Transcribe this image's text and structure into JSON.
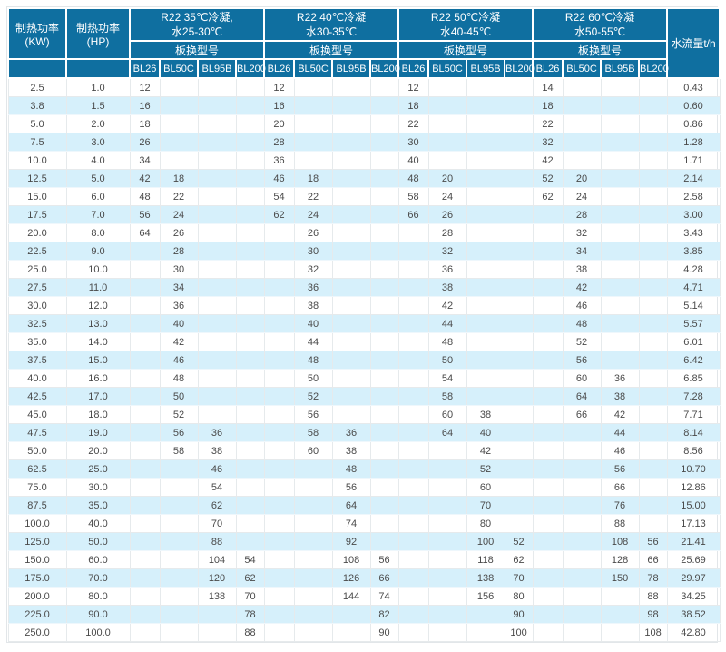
{
  "colors": {
    "header_bg": "#0f6fa0",
    "header_text": "#ffffff",
    "stripe_bg": "#d6f0fb",
    "body_text": "#4a4a4a",
    "border": "#e6eaec"
  },
  "chart_data": {
    "type": "table",
    "title": "",
    "header": {
      "power_kw": "制热功率(KW)",
      "power_hp": "制热功率(HP)",
      "flow": "水流量t/h",
      "model_row_label": "板换型号",
      "models": [
        "BL26",
        "BL50C",
        "BL95B",
        "BL200"
      ],
      "groups": [
        {
          "line1": "R22 35℃冷凝,",
          "line2": "水25-30℃"
        },
        {
          "line1": "R22 40℃冷凝",
          "line2": "水30-35℃"
        },
        {
          "line1": "R22 50℃冷凝",
          "line2": "水40-45℃"
        },
        {
          "line1": "R22 60℃冷凝",
          "line2": "水50-55℃"
        }
      ]
    },
    "rows": [
      [
        "2.5",
        "1.0",
        "12",
        "",
        "",
        "",
        "12",
        "",
        "",
        "",
        "12",
        "",
        "",
        "",
        "14",
        "",
        "",
        "",
        "0.43"
      ],
      [
        "3.8",
        "1.5",
        "16",
        "",
        "",
        "",
        "16",
        "",
        "",
        "",
        "18",
        "",
        "",
        "",
        "18",
        "",
        "",
        "",
        "0.60"
      ],
      [
        "5.0",
        "2.0",
        "18",
        "",
        "",
        "",
        "20",
        "",
        "",
        "",
        "22",
        "",
        "",
        "",
        "22",
        "",
        "",
        "",
        "0.86"
      ],
      [
        "7.5",
        "3.0",
        "26",
        "",
        "",
        "",
        "28",
        "",
        "",
        "",
        "30",
        "",
        "",
        "",
        "32",
        "",
        "",
        "",
        "1.28"
      ],
      [
        "10.0",
        "4.0",
        "34",
        "",
        "",
        "",
        "36",
        "",
        "",
        "",
        "40",
        "",
        "",
        "",
        "42",
        "",
        "",
        "",
        "1.71"
      ],
      [
        "12.5",
        "5.0",
        "42",
        "18",
        "",
        "",
        "46",
        "18",
        "",
        "",
        "48",
        "20",
        "",
        "",
        "52",
        "20",
        "",
        "",
        "2.14"
      ],
      [
        "15.0",
        "6.0",
        "48",
        "22",
        "",
        "",
        "54",
        "22",
        "",
        "",
        "58",
        "24",
        "",
        "",
        "62",
        "24",
        "",
        "",
        "2.58"
      ],
      [
        "17.5",
        "7.0",
        "56",
        "24",
        "",
        "",
        "62",
        "24",
        "",
        "",
        "66",
        "26",
        "",
        "",
        "",
        "28",
        "",
        "",
        "3.00"
      ],
      [
        "20.0",
        "8.0",
        "64",
        "26",
        "",
        "",
        "",
        "26",
        "",
        "",
        "",
        "28",
        "",
        "",
        "",
        "32",
        "",
        "",
        "3.43"
      ],
      [
        "22.5",
        "9.0",
        "",
        "28",
        "",
        "",
        "",
        "30",
        "",
        "",
        "",
        "32",
        "",
        "",
        "",
        "34",
        "",
        "",
        "3.85"
      ],
      [
        "25.0",
        "10.0",
        "",
        "30",
        "",
        "",
        "",
        "32",
        "",
        "",
        "",
        "36",
        "",
        "",
        "",
        "38",
        "",
        "",
        "4.28"
      ],
      [
        "27.5",
        "11.0",
        "",
        "34",
        "",
        "",
        "",
        "36",
        "",
        "",
        "",
        "38",
        "",
        "",
        "",
        "42",
        "",
        "",
        "4.71"
      ],
      [
        "30.0",
        "12.0",
        "",
        "36",
        "",
        "",
        "",
        "38",
        "",
        "",
        "",
        "42",
        "",
        "",
        "",
        "46",
        "",
        "",
        "5.14"
      ],
      [
        "32.5",
        "13.0",
        "",
        "40",
        "",
        "",
        "",
        "40",
        "",
        "",
        "",
        "44",
        "",
        "",
        "",
        "48",
        "",
        "",
        "5.57"
      ],
      [
        "35.0",
        "14.0",
        "",
        "42",
        "",
        "",
        "",
        "44",
        "",
        "",
        "",
        "48",
        "",
        "",
        "",
        "52",
        "",
        "",
        "6.01"
      ],
      [
        "37.5",
        "15.0",
        "",
        "46",
        "",
        "",
        "",
        "48",
        "",
        "",
        "",
        "50",
        "",
        "",
        "",
        "56",
        "",
        "",
        "6.42"
      ],
      [
        "40.0",
        "16.0",
        "",
        "48",
        "",
        "",
        "",
        "50",
        "",
        "",
        "",
        "54",
        "",
        "",
        "",
        "60",
        "36",
        "",
        "6.85"
      ],
      [
        "42.5",
        "17.0",
        "",
        "50",
        "",
        "",
        "",
        "52",
        "",
        "",
        "",
        "58",
        "",
        "",
        "",
        "64",
        "38",
        "",
        "7.28"
      ],
      [
        "45.0",
        "18.0",
        "",
        "52",
        "",
        "",
        "",
        "56",
        "",
        "",
        "",
        "60",
        "38",
        "",
        "",
        "66",
        "42",
        "",
        "7.71"
      ],
      [
        "47.5",
        "19.0",
        "",
        "56",
        "36",
        "",
        "",
        "58",
        "36",
        "",
        "",
        "64",
        "40",
        "",
        "",
        "",
        "44",
        "",
        "8.14"
      ],
      [
        "50.0",
        "20.0",
        "",
        "58",
        "38",
        "",
        "",
        "60",
        "38",
        "",
        "",
        "",
        "42",
        "",
        "",
        "",
        "46",
        "",
        "8.56"
      ],
      [
        "62.5",
        "25.0",
        "",
        "",
        "46",
        "",
        "",
        "",
        "48",
        "",
        "",
        "",
        "52",
        "",
        "",
        "",
        "56",
        "",
        "10.70"
      ],
      [
        "75.0",
        "30.0",
        "",
        "",
        "54",
        "",
        "",
        "",
        "56",
        "",
        "",
        "",
        "60",
        "",
        "",
        "",
        "66",
        "",
        "12.86"
      ],
      [
        "87.5",
        "35.0",
        "",
        "",
        "62",
        "",
        "",
        "",
        "64",
        "",
        "",
        "",
        "70",
        "",
        "",
        "",
        "76",
        "",
        "15.00"
      ],
      [
        "100.0",
        "40.0",
        "",
        "",
        "70",
        "",
        "",
        "",
        "74",
        "",
        "",
        "",
        "80",
        "",
        "",
        "",
        "88",
        "",
        "17.13"
      ],
      [
        "125.0",
        "50.0",
        "",
        "",
        "88",
        "",
        "",
        "",
        "92",
        "",
        "",
        "",
        "100",
        "52",
        "",
        "",
        "108",
        "56",
        "21.41"
      ],
      [
        "150.0",
        "60.0",
        "",
        "",
        "104",
        "54",
        "",
        "",
        "108",
        "56",
        "",
        "",
        "118",
        "62",
        "",
        "",
        "128",
        "66",
        "25.69"
      ],
      [
        "175.0",
        "70.0",
        "",
        "",
        "120",
        "62",
        "",
        "",
        "126",
        "66",
        "",
        "",
        "138",
        "70",
        "",
        "",
        "150",
        "78",
        "29.97"
      ],
      [
        "200.0",
        "80.0",
        "",
        "",
        "138",
        "70",
        "",
        "",
        "144",
        "74",
        "",
        "",
        "156",
        "80",
        "",
        "",
        "",
        "88",
        "34.25"
      ],
      [
        "225.0",
        "90.0",
        "",
        "",
        "",
        "78",
        "",
        "",
        "",
        "82",
        "",
        "",
        "",
        "90",
        "",
        "",
        "",
        "98",
        "38.52"
      ],
      [
        "250.0",
        "100.0",
        "",
        "",
        "",
        "88",
        "",
        "",
        "",
        "90",
        "",
        "",
        "",
        "100",
        "",
        "",
        "",
        "108",
        "42.80"
      ]
    ]
  }
}
